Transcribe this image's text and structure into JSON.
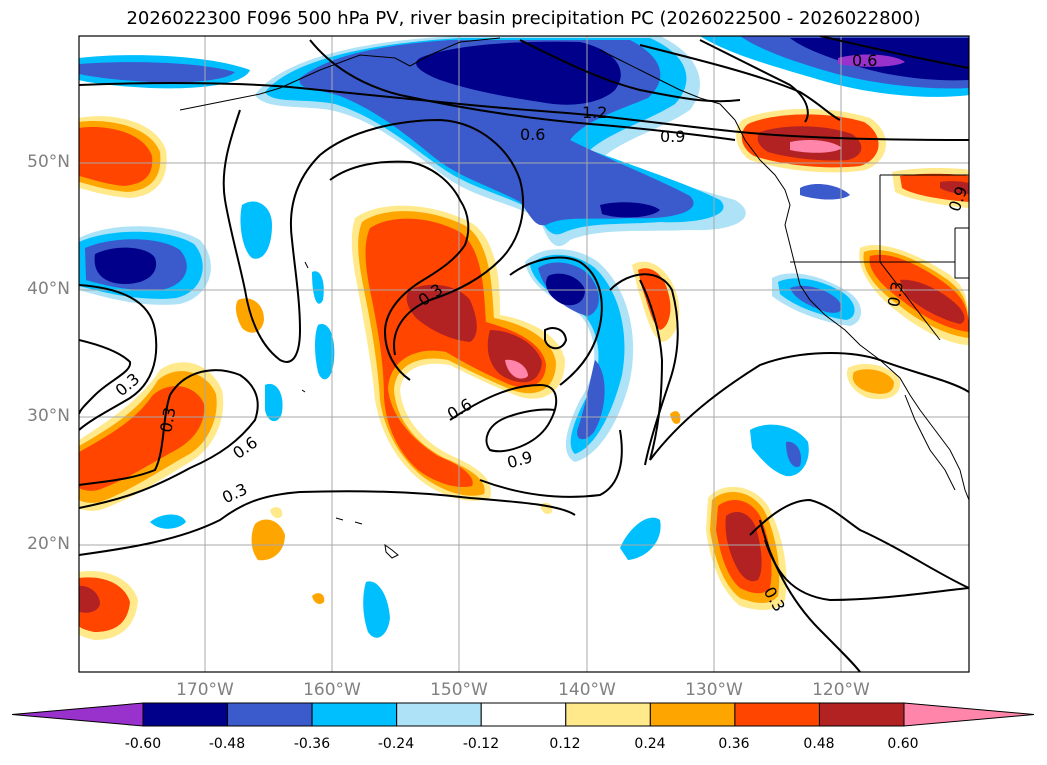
{
  "title": "2026022300 F096 500 hPa PV, river basin precipitation PC (2026022500 - 2026022800)",
  "lat_labels": [
    "50°N",
    "40°N",
    "30°N",
    "20°N"
  ],
  "lon_labels": [
    "170°W",
    "160°W",
    "150°W",
    "140°W",
    "130°W",
    "120°W"
  ],
  "contour_labels": [
    "0.6",
    "1.2",
    "0.6",
    "0.9",
    "0.3",
    "0.3",
    "0.3",
    "0.6",
    "0.6",
    "0.9",
    "0.3",
    "0.3",
    "0.3",
    "0.9"
  ],
  "colorbar": {
    "ticks": [
      "-0.60",
      "-0.48",
      "-0.36",
      "-0.24",
      "-0.12",
      "0.12",
      "0.24",
      "0.36",
      "0.48",
      "0.60"
    ],
    "colors": [
      "#9932cc",
      "#00008b",
      "#3b5bcc",
      "#00bfff",
      "#ade2f7",
      "#ffffff",
      "#ffe98a",
      "#ffa500",
      "#ff4500",
      "#b22222",
      "#ff85aa"
    ]
  },
  "colors": {
    "land_outline": "#000000",
    "grid": "#a8a8a8"
  }
}
